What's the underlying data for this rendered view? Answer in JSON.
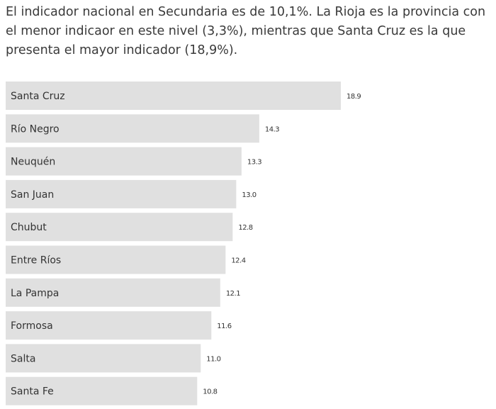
{
  "intro": {
    "text": "El indicador nacional en Secundaria es de 10,1%. La Rioja es la provincia con el menor indicaor en este nivel (3,3%), mientras que Santa Cruz es la que presenta el mayor indicador (18,9%)."
  },
  "colors": {
    "bar": "#e0e0e0",
    "text": "#333333"
  },
  "chart_data": {
    "type": "bar",
    "orientation": "horizontal",
    "categories": [
      "Santa Cruz",
      "Río Negro",
      "Neuquén",
      "San Juan",
      "Chubut",
      "Entre Ríos",
      "La Pampa",
      "Formosa",
      "Salta",
      "Santa Fe"
    ],
    "values": [
      18.9,
      14.3,
      13.3,
      13.0,
      12.8,
      12.4,
      12.1,
      11.6,
      11.0,
      10.8
    ],
    "value_labels": [
      "18.9",
      "14.3",
      "13.3",
      "13.0",
      "12.8",
      "12.4",
      "12.1",
      "11.6",
      "11.0",
      "10.8"
    ],
    "xlim": [
      0,
      18.9
    ],
    "grid": false,
    "legend": "none"
  }
}
